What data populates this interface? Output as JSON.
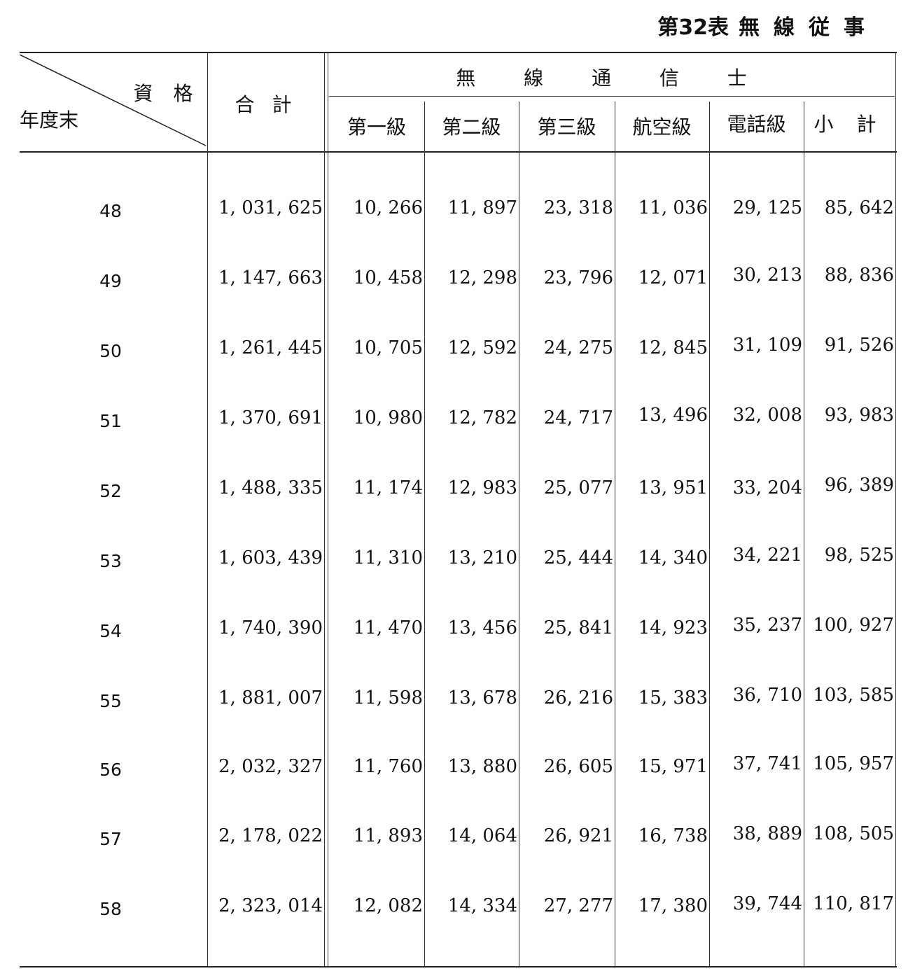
{
  "title": {
    "number": "第32表",
    "text": "無線従事"
  },
  "header": {
    "corner_top": "資 格",
    "corner_bottom": "年度末",
    "total": "合 計",
    "group": "無 線 通 信 士",
    "sub": [
      "第一級",
      "第二級",
      "第三級",
      "航空級",
      "電話級",
      "小 計"
    ]
  },
  "rows": [
    {
      "year": "48",
      "total": "1, 031, 625",
      "c1": "10, 266",
      "c2": "11, 897",
      "c3": "23, 318",
      "c4": "11, 036",
      "c5": "29, 125",
      "c6": "85, 642"
    },
    {
      "year": "49",
      "total": "1, 147, 663",
      "c1": "10, 458",
      "c2": "12, 298",
      "c3": "23, 796",
      "c4": "12, 071",
      "c5": "30, 213",
      "c6": "88, 836"
    },
    {
      "year": "50",
      "total": "1, 261, 445",
      "c1": "10, 705",
      "c2": "12, 592",
      "c3": "24, 275",
      "c4": "12, 845",
      "c5": "31, 109",
      "c6": "91, 526"
    },
    {
      "year": "51",
      "total": "1, 370, 691",
      "c1": "10, 980",
      "c2": "12, 782",
      "c3": "24, 717",
      "c4": "13, 496",
      "c5": "32, 008",
      "c6": "93, 983"
    },
    {
      "year": "52",
      "total": "1, 488, 335",
      "c1": "11, 174",
      "c2": "12, 983",
      "c3": "25, 077",
      "c4": "13, 951",
      "c5": "33, 204",
      "c6": "96, 389"
    },
    {
      "year": "53",
      "total": "1, 603, 439",
      "c1": "11, 310",
      "c2": "13, 210",
      "c3": "25, 444",
      "c4": "14, 340",
      "c5": "34, 221",
      "c6": "98, 525"
    },
    {
      "year": "54",
      "total": "1, 740, 390",
      "c1": "11, 470",
      "c2": "13, 456",
      "c3": "25, 841",
      "c4": "14, 923",
      "c5": "35, 237",
      "c6": "100, 927"
    },
    {
      "year": "55",
      "total": "1, 881, 007",
      "c1": "11, 598",
      "c2": "13, 678",
      "c3": "26, 216",
      "c4": "15, 383",
      "c5": "36, 710",
      "c6": "103, 585"
    },
    {
      "year": "56",
      "total": "2, 032, 327",
      "c1": "11, 760",
      "c2": "13, 880",
      "c3": "26, 605",
      "c4": "15, 971",
      "c5": "37, 741",
      "c6": "105, 957"
    },
    {
      "year": "57",
      "total": "2, 178, 022",
      "c1": "11, 893",
      "c2": "14, 064",
      "c3": "26, 921",
      "c4": "16, 738",
      "c5": "38, 889",
      "c6": "108, 505"
    },
    {
      "year": "58",
      "total": "2, 323, 014",
      "c1": "12, 082",
      "c2": "14, 334",
      "c3": "27, 277",
      "c4": "17, 380",
      "c5": "39, 744",
      "c6": "110, 817"
    }
  ]
}
